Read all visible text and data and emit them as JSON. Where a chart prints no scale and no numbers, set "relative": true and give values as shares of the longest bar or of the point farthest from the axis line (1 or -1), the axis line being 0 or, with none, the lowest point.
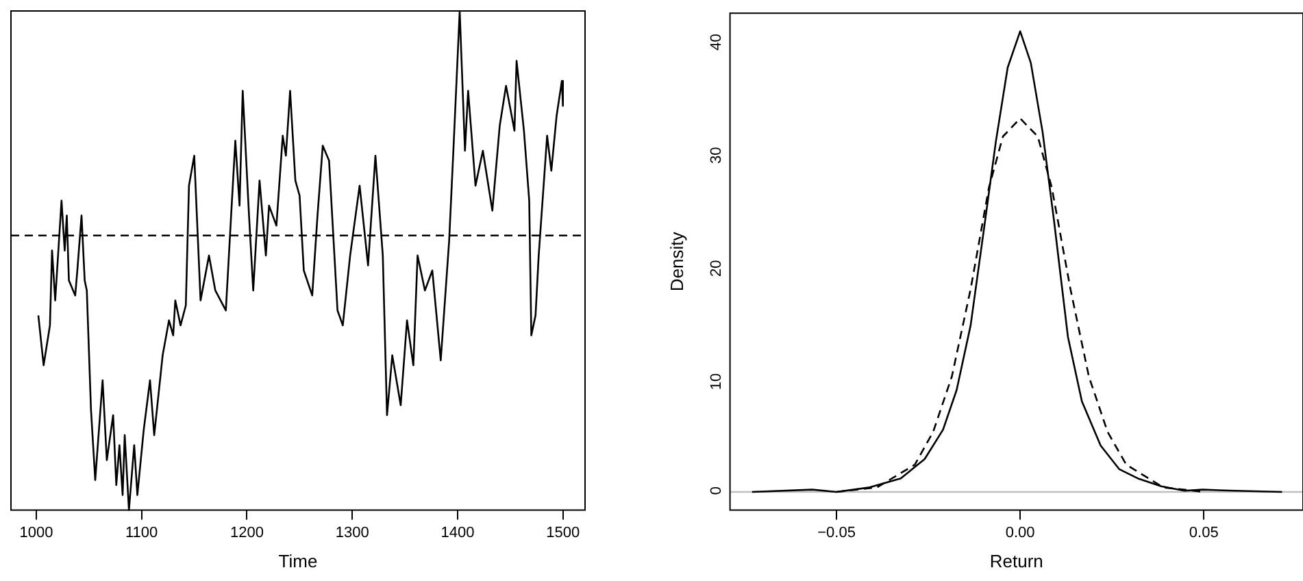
{
  "chart_data": [
    {
      "type": "line",
      "xlabel": "Time",
      "relative": true,
      "xlim": [
        976,
        1521
      ],
      "xticks": [
        1000,
        1100,
        1200,
        1300,
        1400,
        1500
      ],
      "ref_lines": [
        {
          "axis": "y",
          "value": 0.55,
          "color": "#000000",
          "line_style": "dashed"
        }
      ],
      "series": [
        {
          "color": "#000000",
          "line_style": "solid",
          "x": [
            1002,
            1007,
            1013,
            1015,
            1018,
            1024,
            1027,
            1029,
            1031,
            1037,
            1039,
            1043,
            1046,
            1048,
            1052,
            1056,
            1063,
            1067,
            1073,
            1076,
            1079,
            1082,
            1084,
            1088,
            1093,
            1096,
            1102,
            1108,
            1112,
            1120,
            1126,
            1130,
            1132,
            1137,
            1142,
            1145,
            1150,
            1156,
            1164,
            1170,
            1180,
            1185,
            1189,
            1193,
            1196,
            1202,
            1206,
            1212,
            1218,
            1221,
            1228,
            1234,
            1237,
            1241,
            1246,
            1250,
            1254,
            1262,
            1267,
            1272,
            1278,
            1286,
            1291,
            1298,
            1307,
            1315,
            1322,
            1329,
            1333,
            1338,
            1346,
            1352,
            1358,
            1362,
            1369,
            1376,
            1384,
            1392,
            1396,
            1402,
            1407,
            1410,
            1417,
            1424,
            1433,
            1440,
            1446,
            1454,
            1456,
            1463,
            1468,
            1470,
            1474,
            1477,
            1481,
            1485,
            1489,
            1494,
            1499,
            1500
          ],
          "values": [
            0.39,
            0.29,
            0.37,
            0.52,
            0.42,
            0.62,
            0.52,
            0.59,
            0.46,
            0.43,
            0.48,
            0.59,
            0.46,
            0.44,
            0.2,
            0.06,
            0.26,
            0.1,
            0.19,
            0.05,
            0.13,
            0.03,
            0.15,
            0,
            0.13,
            0.03,
            0.16,
            0.26,
            0.15,
            0.31,
            0.38,
            0.35,
            0.42,
            0.37,
            0.41,
            0.65,
            0.71,
            0.42,
            0.51,
            0.44,
            0.4,
            0.59,
            0.74,
            0.61,
            0.84,
            0.59,
            0.44,
            0.66,
            0.51,
            0.61,
            0.57,
            0.75,
            0.71,
            0.84,
            0.66,
            0.63,
            0.48,
            0.43,
            0.59,
            0.73,
            0.7,
            0.4,
            0.37,
            0.51,
            0.65,
            0.49,
            0.71,
            0.51,
            0.19,
            0.31,
            0.21,
            0.38,
            0.29,
            0.51,
            0.44,
            0.48,
            0.3,
            0.54,
            0.72,
            1,
            0.72,
            0.84,
            0.65,
            0.72,
            0.6,
            0.77,
            0.85,
            0.76,
            0.9,
            0.76,
            0.62,
            0.35,
            0.39,
            0.51,
            0.63,
            0.75,
            0.68,
            0.79,
            0.86,
            0.81
          ]
        }
      ]
    },
    {
      "type": "line",
      "xlabel": "Return",
      "ylabel": "Density",
      "xlim": [
        -0.079,
        0.077
      ],
      "ylim": [
        -1.6,
        42.3
      ],
      "xticks": [
        {
          "value": -0.05,
          "label": "−0.05"
        },
        {
          "value": 0,
          "label": "0.00"
        },
        {
          "value": 0.05,
          "label": "0.05"
        }
      ],
      "yticks": [
        0,
        10,
        20,
        30,
        40
      ],
      "ref_lines": [
        {
          "axis": "y",
          "value": 0,
          "color": "#c0c0c0",
          "line_style": "solid"
        }
      ],
      "series": [
        {
          "color": "#000000",
          "line_style": "solid",
          "x": [
            -0.073,
            -0.0566,
            -0.05,
            -0.041,
            -0.0325,
            -0.026,
            -0.021,
            -0.0173,
            -0.0135,
            -0.0097,
            -0.0066,
            -0.0034,
            0,
            0.0029,
            0.0061,
            0.0092,
            0.013,
            0.0168,
            0.0219,
            0.027,
            0.032,
            0.0384,
            0.0447,
            0.0497,
            0.0586,
            0.0713
          ],
          "values": [
            0,
            0.2,
            0,
            0.4,
            1.2,
            2.9,
            5.5,
            9,
            14.7,
            23.6,
            31,
            37.5,
            40.7,
            37.9,
            31.8,
            24,
            13.7,
            8,
            4.1,
            2,
            1.2,
            0.5,
            0.1,
            0.2,
            0.1,
            0
          ]
        },
        {
          "color": "#000000",
          "line_style": "dashed",
          "x": [
            -0.05,
            -0.039,
            -0.0287,
            -0.0237,
            -0.0186,
            -0.0135,
            -0.0085,
            -0.0047,
            0,
            0.0048,
            0.0086,
            0.0137,
            0.0187,
            0.0238,
            0.0289,
            0.039,
            0.05
          ],
          "values": [
            0,
            0.4,
            2.4,
            5.3,
            10.2,
            17.9,
            26.9,
            31.4,
            33,
            31.4,
            26.9,
            17.9,
            10.2,
            5.3,
            2.4,
            0.4,
            0
          ]
        }
      ]
    }
  ]
}
